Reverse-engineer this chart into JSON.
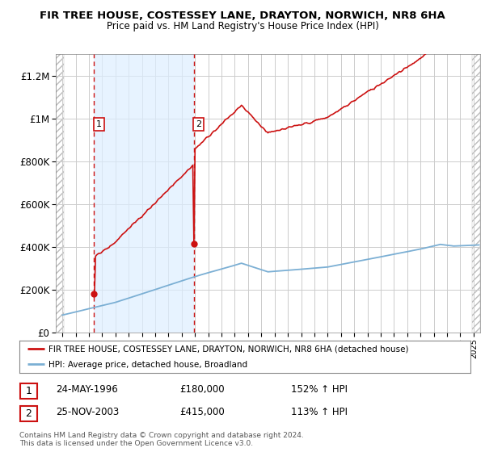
{
  "title": "FIR TREE HOUSE, COSTESSEY LANE, DRAYTON, NORWICH, NR8 6HA",
  "subtitle": "Price paid vs. HM Land Registry's House Price Index (HPI)",
  "ylim": [
    0,
    1300000
  ],
  "yticks": [
    0,
    200000,
    400000,
    600000,
    800000,
    1000000,
    1200000
  ],
  "ytick_labels": [
    "£0",
    "£200K",
    "£400K",
    "£600K",
    "£800K",
    "£1M",
    "£1.2M"
  ],
  "xmin": 1993.5,
  "xmax": 2025.5,
  "sale1_x": 1996.39,
  "sale1_y": 180000,
  "sale1_label": "1",
  "sale2_x": 2003.9,
  "sale2_y": 415000,
  "sale2_label": "2",
  "hpi_color": "#7bafd4",
  "price_color": "#cc1111",
  "dashed_color": "#cc1111",
  "shade_between_sales": "#ddeeff",
  "legend_price_label": "FIR TREE HOUSE, COSTESSEY LANE, DRAYTON, NORWICH, NR8 6HA (detached house)",
  "legend_hpi_label": "HPI: Average price, detached house, Broadland",
  "table_rows": [
    {
      "num": "1",
      "date": "24-MAY-1996",
      "price": "£180,000",
      "hpi": "152% ↑ HPI"
    },
    {
      "num": "2",
      "date": "25-NOV-2003",
      "price": "£415,000",
      "hpi": "113% ↑ HPI"
    }
  ],
  "footer": "Contains HM Land Registry data © Crown copyright and database right 2024.\nThis data is licensed under the Open Government Licence v3.0.",
  "bg_hatch_color": "#aaaaaa",
  "plot_bg_color": "#f0f4ff"
}
